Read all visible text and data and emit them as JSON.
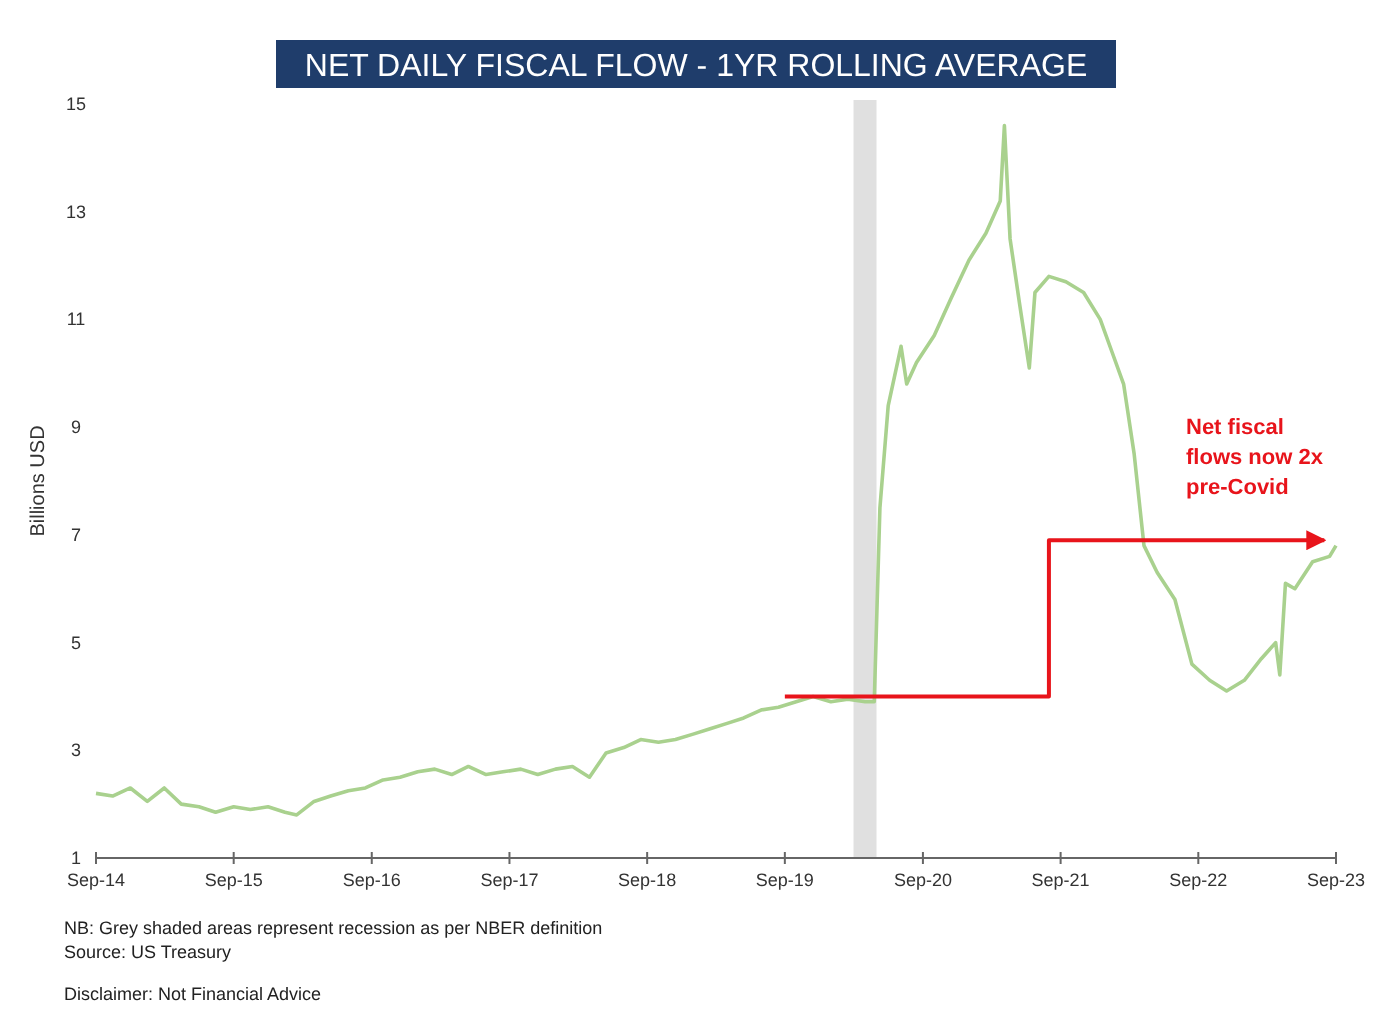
{
  "chart_data": {
    "type": "line",
    "title": "NET DAILY FISCAL FLOW - 1YR ROLLING AVERAGE",
    "ylabel": "Billions USD",
    "xlim": [
      "2014-09-01",
      "2023-09-01"
    ],
    "ylim": [
      1,
      15
    ],
    "yticks": [
      1,
      3,
      5,
      7,
      9,
      11,
      13,
      15
    ],
    "xticks": [
      {
        "value": "2014-09-01",
        "label": "Sep-14"
      },
      {
        "value": "2015-09-01",
        "label": "Sep-15"
      },
      {
        "value": "2016-09-01",
        "label": "Sep-16"
      },
      {
        "value": "2017-09-01",
        "label": "Sep-17"
      },
      {
        "value": "2018-09-01",
        "label": "Sep-18"
      },
      {
        "value": "2019-09-01",
        "label": "Sep-19"
      },
      {
        "value": "2020-09-01",
        "label": "Sep-20"
      },
      {
        "value": "2021-09-01",
        "label": "Sep-21"
      },
      {
        "value": "2022-09-01",
        "label": "Sep-22"
      },
      {
        "value": "2023-09-01",
        "label": "Sep-23"
      }
    ],
    "grid": false,
    "line_style": "solid",
    "marker": "none",
    "series": [
      {
        "color": "#a9d18e",
        "x": [
          "2014-09-01",
          "2014-10-15",
          "2014-12-01",
          "2015-01-15",
          "2015-03-01",
          "2015-04-15",
          "2015-06-01",
          "2015-07-15",
          "2015-09-01",
          "2015-10-15",
          "2015-12-01",
          "2016-01-15",
          "2016-02-15",
          "2016-04-01",
          "2016-05-15",
          "2016-07-01",
          "2016-08-15",
          "2016-10-01",
          "2016-11-15",
          "2017-01-01",
          "2017-02-15",
          "2017-04-01",
          "2017-05-15",
          "2017-07-01",
          "2017-08-15",
          "2017-10-01",
          "2017-11-15",
          "2018-01-01",
          "2018-02-15",
          "2018-04-01",
          "2018-05-15",
          "2018-07-01",
          "2018-08-15",
          "2018-10-01",
          "2018-11-15",
          "2019-01-01",
          "2019-02-15",
          "2019-04-01",
          "2019-05-15",
          "2019-07-01",
          "2019-08-15",
          "2019-10-01",
          "2019-11-15",
          "2020-01-01",
          "2020-02-15",
          "2020-04-01",
          "2020-04-25",
          "2020-05-10",
          "2020-06-01",
          "2020-07-05",
          "2020-07-20",
          "2020-08-15",
          "2020-10-01",
          "2020-11-15",
          "2021-01-01",
          "2021-02-15",
          "2021-03-25",
          "2021-04-05",
          "2021-04-20",
          "2021-05-15",
          "2021-06-10",
          "2021-06-25",
          "2021-08-01",
          "2021-09-15",
          "2021-11-01",
          "2021-12-15",
          "2022-01-15",
          "2022-02-15",
          "2022-03-15",
          "2022-04-10",
          "2022-05-15",
          "2022-07-01",
          "2022-08-15",
          "2022-10-01",
          "2022-11-15",
          "2023-01-01",
          "2023-02-15",
          "2023-03-25",
          "2023-04-05",
          "2023-04-20",
          "2023-05-15",
          "2023-07-01",
          "2023-08-15",
          "2023-09-01"
        ],
        "values": [
          2.2,
          2.15,
          2.3,
          2.05,
          2.3,
          2.0,
          1.95,
          1.85,
          1.95,
          1.9,
          1.95,
          1.85,
          1.8,
          2.05,
          2.15,
          2.25,
          2.3,
          2.45,
          2.5,
          2.6,
          2.65,
          2.55,
          2.7,
          2.55,
          2.6,
          2.65,
          2.55,
          2.65,
          2.7,
          2.5,
          2.95,
          3.05,
          3.2,
          3.15,
          3.2,
          3.3,
          3.4,
          3.5,
          3.6,
          3.75,
          3.8,
          3.9,
          4.0,
          3.9,
          3.95,
          3.9,
          3.9,
          7.5,
          9.4,
          10.5,
          9.8,
          10.2,
          10.7,
          11.4,
          12.1,
          12.6,
          13.2,
          14.6,
          12.5,
          11.3,
          10.1,
          11.5,
          11.8,
          11.7,
          11.5,
          11.0,
          10.4,
          9.8,
          8.5,
          6.8,
          6.3,
          5.8,
          4.6,
          4.3,
          4.1,
          4.3,
          4.7,
          5.0,
          4.4,
          6.1,
          6.0,
          6.5,
          6.6,
          6.8
        ]
      },
      {
        "type": "step",
        "color": "#e8141b",
        "x": [
          "2019-09-01",
          "2021-08-01",
          "2023-08-01"
        ],
        "values": [
          4,
          6.9,
          6.9
        ]
      }
    ],
    "bands": [
      {
        "axis": "x",
        "from": "2020-03-01",
        "to": "2020-05-01",
        "color": "#e0e0e0"
      }
    ],
    "annotations": [
      "Net fiscal flows now 2x pre-Covid",
      "NB: Grey shaded areas represent recession as per NBER definition",
      "Source: US Treasury",
      "Disclaimer: Not Financial Advice"
    ]
  }
}
